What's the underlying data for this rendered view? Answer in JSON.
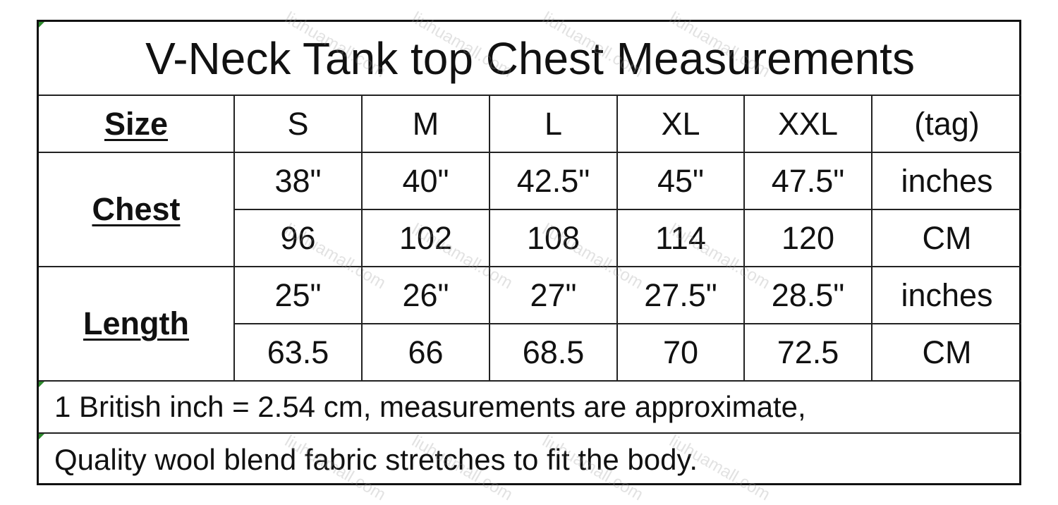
{
  "title": "V-Neck Tank top Chest Measurements",
  "header": {
    "label": "Size",
    "sizes": [
      "S",
      "M",
      "L",
      "XL",
      "XXL"
    ],
    "unit_col": "(tag)"
  },
  "rows": [
    {
      "group": "Chest",
      "values": [
        "38\"",
        "40\"",
        "42.5\"",
        "45\"",
        "47.5\""
      ],
      "unit": "inches"
    },
    {
      "group": "Chest",
      "values": [
        "96",
        "102",
        "108",
        "114",
        "120"
      ],
      "unit": "CM"
    },
    {
      "group": "Length",
      "values": [
        "25\"",
        "26\"",
        "27\"",
        "27.5\"",
        "28.5\""
      ],
      "unit": "inches"
    },
    {
      "group": "Length",
      "values": [
        "63.5",
        "66",
        "68.5",
        "70",
        "72.5"
      ],
      "unit": "CM"
    }
  ],
  "groups": [
    "Chest",
    "Length"
  ],
  "notes": [
    "1 British inch = 2.54 cm, measurements are approximate,",
    "Quality wool blend fabric stretches to fit the body."
  ],
  "watermark": "liuhuamall.com",
  "colors": {
    "border": "#111111",
    "corner_mark": "#2e8b2e"
  }
}
